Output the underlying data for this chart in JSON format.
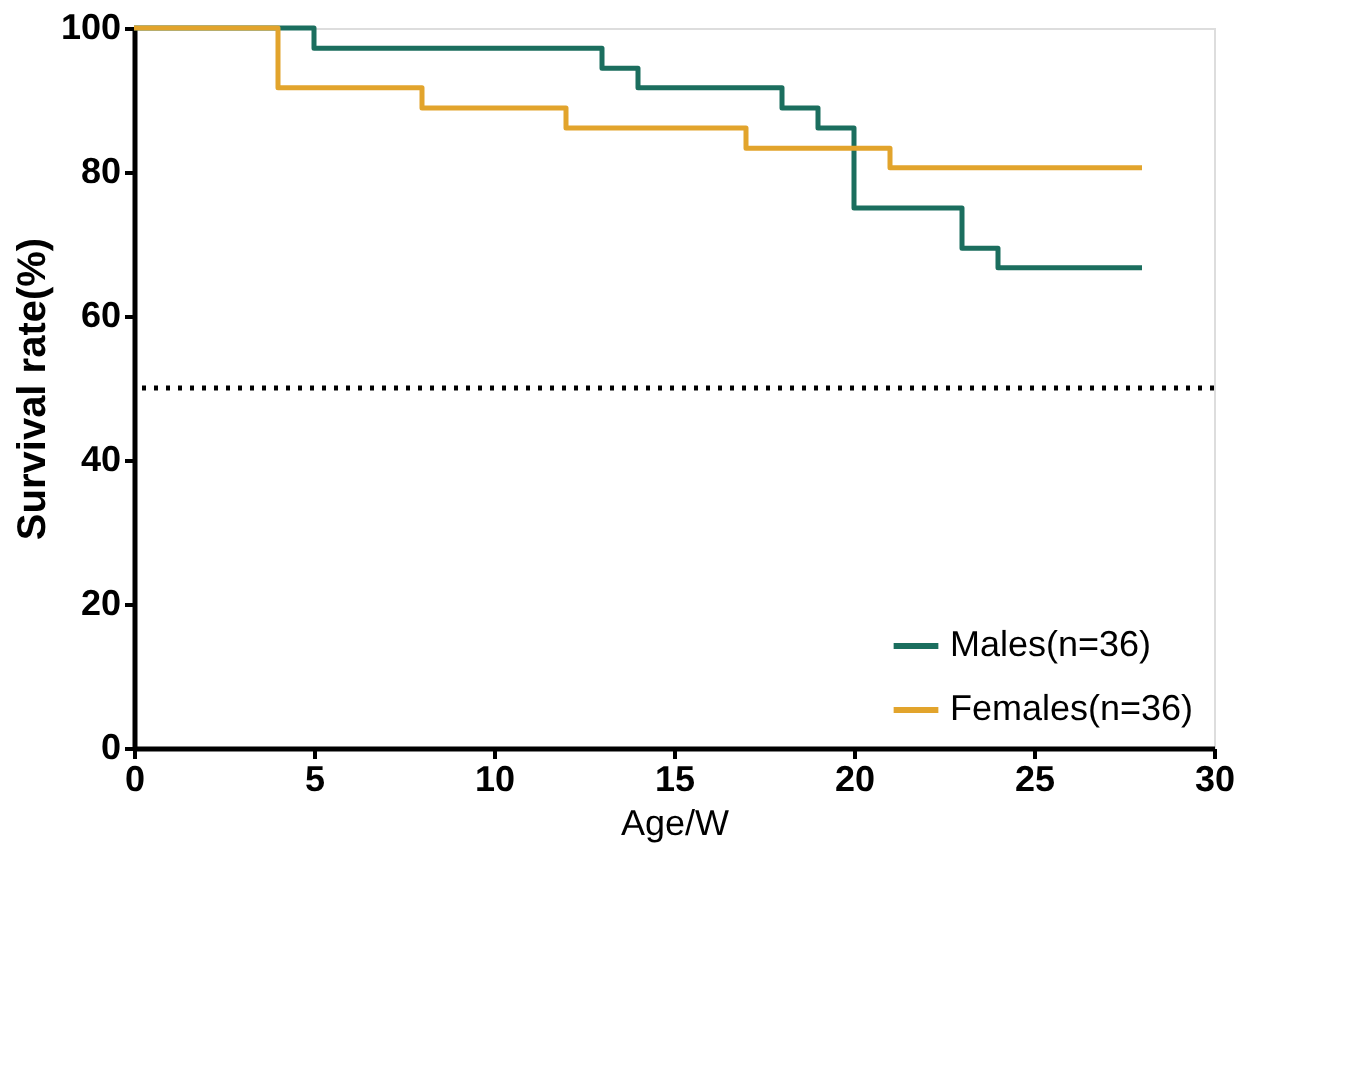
{
  "chart_data": {
    "type": "step",
    "xlabel": "Age/W",
    "ylabel": "Survival rate(%)",
    "series": [
      {
        "name": "Males(n=36)",
        "color": "#1b6e5e",
        "x": [
          0,
          5,
          13,
          14,
          18,
          19,
          20,
          23,
          24,
          28
        ],
        "values": [
          100,
          97.2,
          94.4,
          91.7,
          88.9,
          86.1,
          75,
          69.4,
          66.7,
          66.7
        ]
      },
      {
        "name": "Females(n=36)",
        "color": "#e2a42c",
        "x": [
          0,
          4,
          8,
          12,
          17,
          21,
          28
        ],
        "values": [
          100,
          91.7,
          88.9,
          86.1,
          83.3,
          80.6,
          80.6
        ]
      }
    ],
    "xlim": [
      0,
      30
    ],
    "xticks": [
      0,
      5,
      10,
      15,
      20,
      25,
      30
    ],
    "ylim": [
      0,
      100
    ],
    "yticks": [
      0,
      20,
      40,
      60,
      80,
      100
    ],
    "ref_lines": [
      {
        "axis": "y",
        "value": 50,
        "color": "#000000",
        "line_style": "dotted"
      }
    ],
    "grid": false,
    "legend": "bottom right",
    "marker": "none",
    "line_style": "solid"
  }
}
